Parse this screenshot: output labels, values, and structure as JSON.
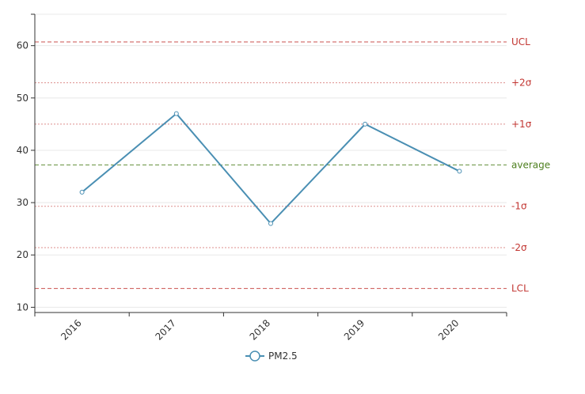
{
  "chart_data": {
    "type": "line",
    "title": "",
    "xlabel": "",
    "ylabel": "",
    "categories": [
      "2016",
      "2017",
      "2018",
      "2019",
      "2020"
    ],
    "series": [
      {
        "name": "PM2.5",
        "values": [
          32,
          47,
          26,
          45,
          36
        ],
        "color": "#4a8fb3"
      }
    ],
    "ylim": [
      9,
      66
    ],
    "yticks": [
      10,
      20,
      30,
      40,
      50,
      60
    ],
    "grid": true,
    "legend": "bottom-center",
    "reference_lines": [
      {
        "label": "UCL",
        "value": 60.7,
        "style": "dashed",
        "color": "#c23531"
      },
      {
        "label": "+2σ",
        "value": 52.9,
        "style": "dotted",
        "color": "#c23531"
      },
      {
        "label": "+1σ",
        "value": 45.0,
        "style": "dotted",
        "color": "#c23531"
      },
      {
        "label": "average",
        "value": 37.2,
        "style": "dashed",
        "color": "#4d7f1e"
      },
      {
        "label": "-1σ",
        "value": 29.3,
        "style": "dotted",
        "color": "#c23531"
      },
      {
        "label": "-2σ",
        "value": 21.4,
        "style": "dotted",
        "color": "#c23531"
      },
      {
        "label": "LCL",
        "value": 13.6,
        "style": "dashed",
        "color": "#c23531"
      }
    ]
  }
}
